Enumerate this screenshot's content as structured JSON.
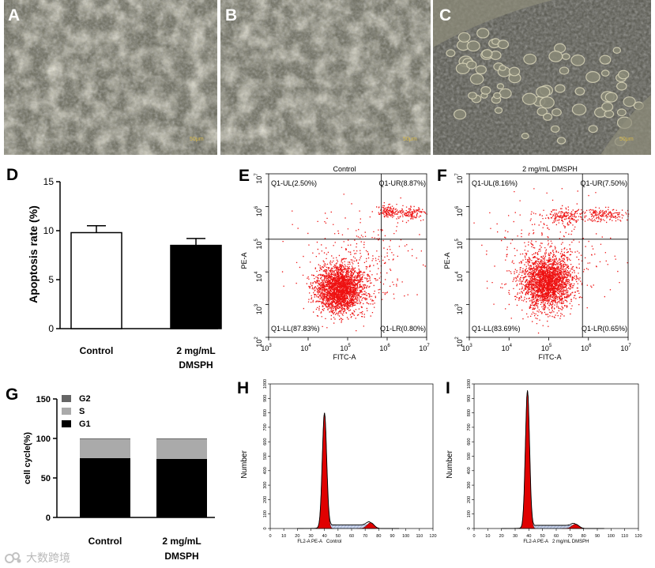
{
  "panels": {
    "A": {
      "letter": "A",
      "scale": "50μm"
    },
    "B": {
      "letter": "B",
      "scale": "50μm"
    },
    "C": {
      "letter": "C",
      "scale": "50μm"
    },
    "D": {
      "letter": "D"
    },
    "E": {
      "letter": "E"
    },
    "F": {
      "letter": "F"
    },
    "G": {
      "letter": "G"
    },
    "H": {
      "letter": "H"
    },
    "I": {
      "letter": "I"
    }
  },
  "colors": {
    "dots": "#ee1111",
    "bar_dark": "#000000",
    "bar_light": "#aaaaaa",
    "g2": "#666666",
    "micrograph": "#6b6b5c"
  },
  "chart_data": [
    {
      "id": "D",
      "type": "bar",
      "ylabel": "Apoptosis rate (%)",
      "categories": [
        "Control",
        "2 mg/mL\nDMSPH"
      ],
      "category_lines": [
        [
          "Control"
        ],
        [
          "2 mg/mL",
          "DMSPH"
        ]
      ],
      "values": [
        9.8,
        8.5
      ],
      "errors": [
        0.7,
        0.7
      ],
      "fills": [
        "#ffffff",
        "#000000"
      ],
      "ylim": [
        0,
        15
      ],
      "yticks": [
        0,
        5,
        10,
        15
      ]
    },
    {
      "id": "E",
      "type": "scatter",
      "title": "Control",
      "xlabel": "FITC-A",
      "ylabel": "PE-A",
      "xlim_exp": [
        3,
        7
      ],
      "ylim_exp": [
        2,
        7
      ],
      "ticks_x": [
        "10^3",
        "10^4",
        "10^5",
        "10^6",
        "10^7"
      ],
      "ticks_y": [
        "10^2",
        "10^3",
        "10^4",
        "10^5",
        "10^6",
        "10^7"
      ],
      "gate": {
        "x": 5.85,
        "y": 5.0
      },
      "quadrants": {
        "UL": "Q1-UL(2.50%)",
        "UR": "Q1-UR(8.87%)",
        "LL": "Q1-LL(87.83%)",
        "LR": "Q1-LR(0.80%)"
      },
      "clusters": [
        {
          "cx": 4.8,
          "cy": 3.5,
          "sx": 0.3,
          "sy": 0.35,
          "n": 2600
        },
        {
          "cx": 6.0,
          "cy": 5.85,
          "sx": 0.12,
          "sy": 0.1,
          "n": 120
        },
        {
          "cx": 6.6,
          "cy": 5.8,
          "sx": 0.18,
          "sy": 0.1,
          "n": 130
        },
        {
          "cx": 5.4,
          "cy": 4.3,
          "sx": 0.8,
          "sy": 0.8,
          "n": 260
        }
      ]
    },
    {
      "id": "F",
      "type": "scatter",
      "title": "2 mg/mL DMSPH",
      "xlabel": "FITC-A",
      "ylabel": "PE-A",
      "xlim_exp": [
        3,
        7
      ],
      "ylim_exp": [
        2,
        7
      ],
      "ticks_x": [
        "10^3",
        "10^4",
        "10^5",
        "10^6",
        "10^7"
      ],
      "ticks_y": [
        "10^2",
        "10^3",
        "10^4",
        "10^5",
        "10^6",
        "10^7"
      ],
      "gate": {
        "x": 5.85,
        "y": 5.0
      },
      "quadrants": {
        "UL": "Q1-UL(8.16%)",
        "UR": "Q1-UR(7.50%)",
        "LL": "Q1-LL(83.69%)",
        "LR": "Q1-LR(0.65%)"
      },
      "clusters": [
        {
          "cx": 4.95,
          "cy": 3.7,
          "sx": 0.32,
          "sy": 0.4,
          "n": 2400
        },
        {
          "cx": 5.4,
          "cy": 5.7,
          "sx": 0.25,
          "sy": 0.12,
          "n": 170
        },
        {
          "cx": 6.4,
          "cy": 5.75,
          "sx": 0.3,
          "sy": 0.1,
          "n": 170
        },
        {
          "cx": 5.0,
          "cy": 4.5,
          "sx": 0.8,
          "sy": 0.8,
          "n": 300
        }
      ]
    },
    {
      "id": "G",
      "type": "bar",
      "ylabel": "cell cycle(%)",
      "categories": [
        "Control",
        "2 mg/mL\nDMSPH"
      ],
      "category_lines": [
        [
          "Control"
        ],
        [
          "2 mg/mL",
          "DMSPH"
        ]
      ],
      "series": [
        {
          "name": "G1",
          "values": [
            75,
            74
          ]
        },
        {
          "name": "S",
          "values": [
            24,
            25
          ]
        },
        {
          "name": "G2",
          "values": [
            1,
            1
          ]
        }
      ],
      "legend": [
        "G2",
        "S",
        "G1"
      ],
      "ylim": [
        0,
        150
      ],
      "yticks": [
        0,
        50,
        100,
        150
      ]
    },
    {
      "id": "H",
      "type": "area",
      "ylabel": "Number",
      "xlabel": "FL2-A PE-A",
      "sample": "Control",
      "xlim": [
        0,
        120
      ],
      "ylim": [
        0,
        1000
      ],
      "xticks": [
        0,
        10,
        20,
        30,
        40,
        50,
        60,
        70,
        80,
        90,
        100,
        110,
        120
      ],
      "yticks": [
        0,
        100,
        200,
        300,
        400,
        500,
        600,
        700,
        800,
        900,
        1000
      ],
      "g1_peak": {
        "x": 40,
        "y": 800,
        "sd": 1.6
      },
      "g2_peak": {
        "x": 74,
        "y": 40,
        "sd": 2.5
      },
      "s_level": 25
    },
    {
      "id": "I",
      "type": "area",
      "ylabel": "Number",
      "xlabel": "FL2-A PE-A",
      "sample": "2 mg/mL DMSPH",
      "xlim": [
        0,
        120
      ],
      "ylim": [
        0,
        1000
      ],
      "xticks": [
        0,
        10,
        20,
        30,
        40,
        50,
        60,
        70,
        80,
        90,
        100,
        110,
        120
      ],
      "yticks": [
        0,
        100,
        200,
        300,
        400,
        500,
        600,
        700,
        800,
        900,
        1000
      ],
      "g1_peak": {
        "x": 39,
        "y": 955,
        "sd": 1.5
      },
      "g2_peak": {
        "x": 74,
        "y": 30,
        "sd": 2.5
      },
      "s_level": 22
    }
  ],
  "watermark": "大数跨境"
}
